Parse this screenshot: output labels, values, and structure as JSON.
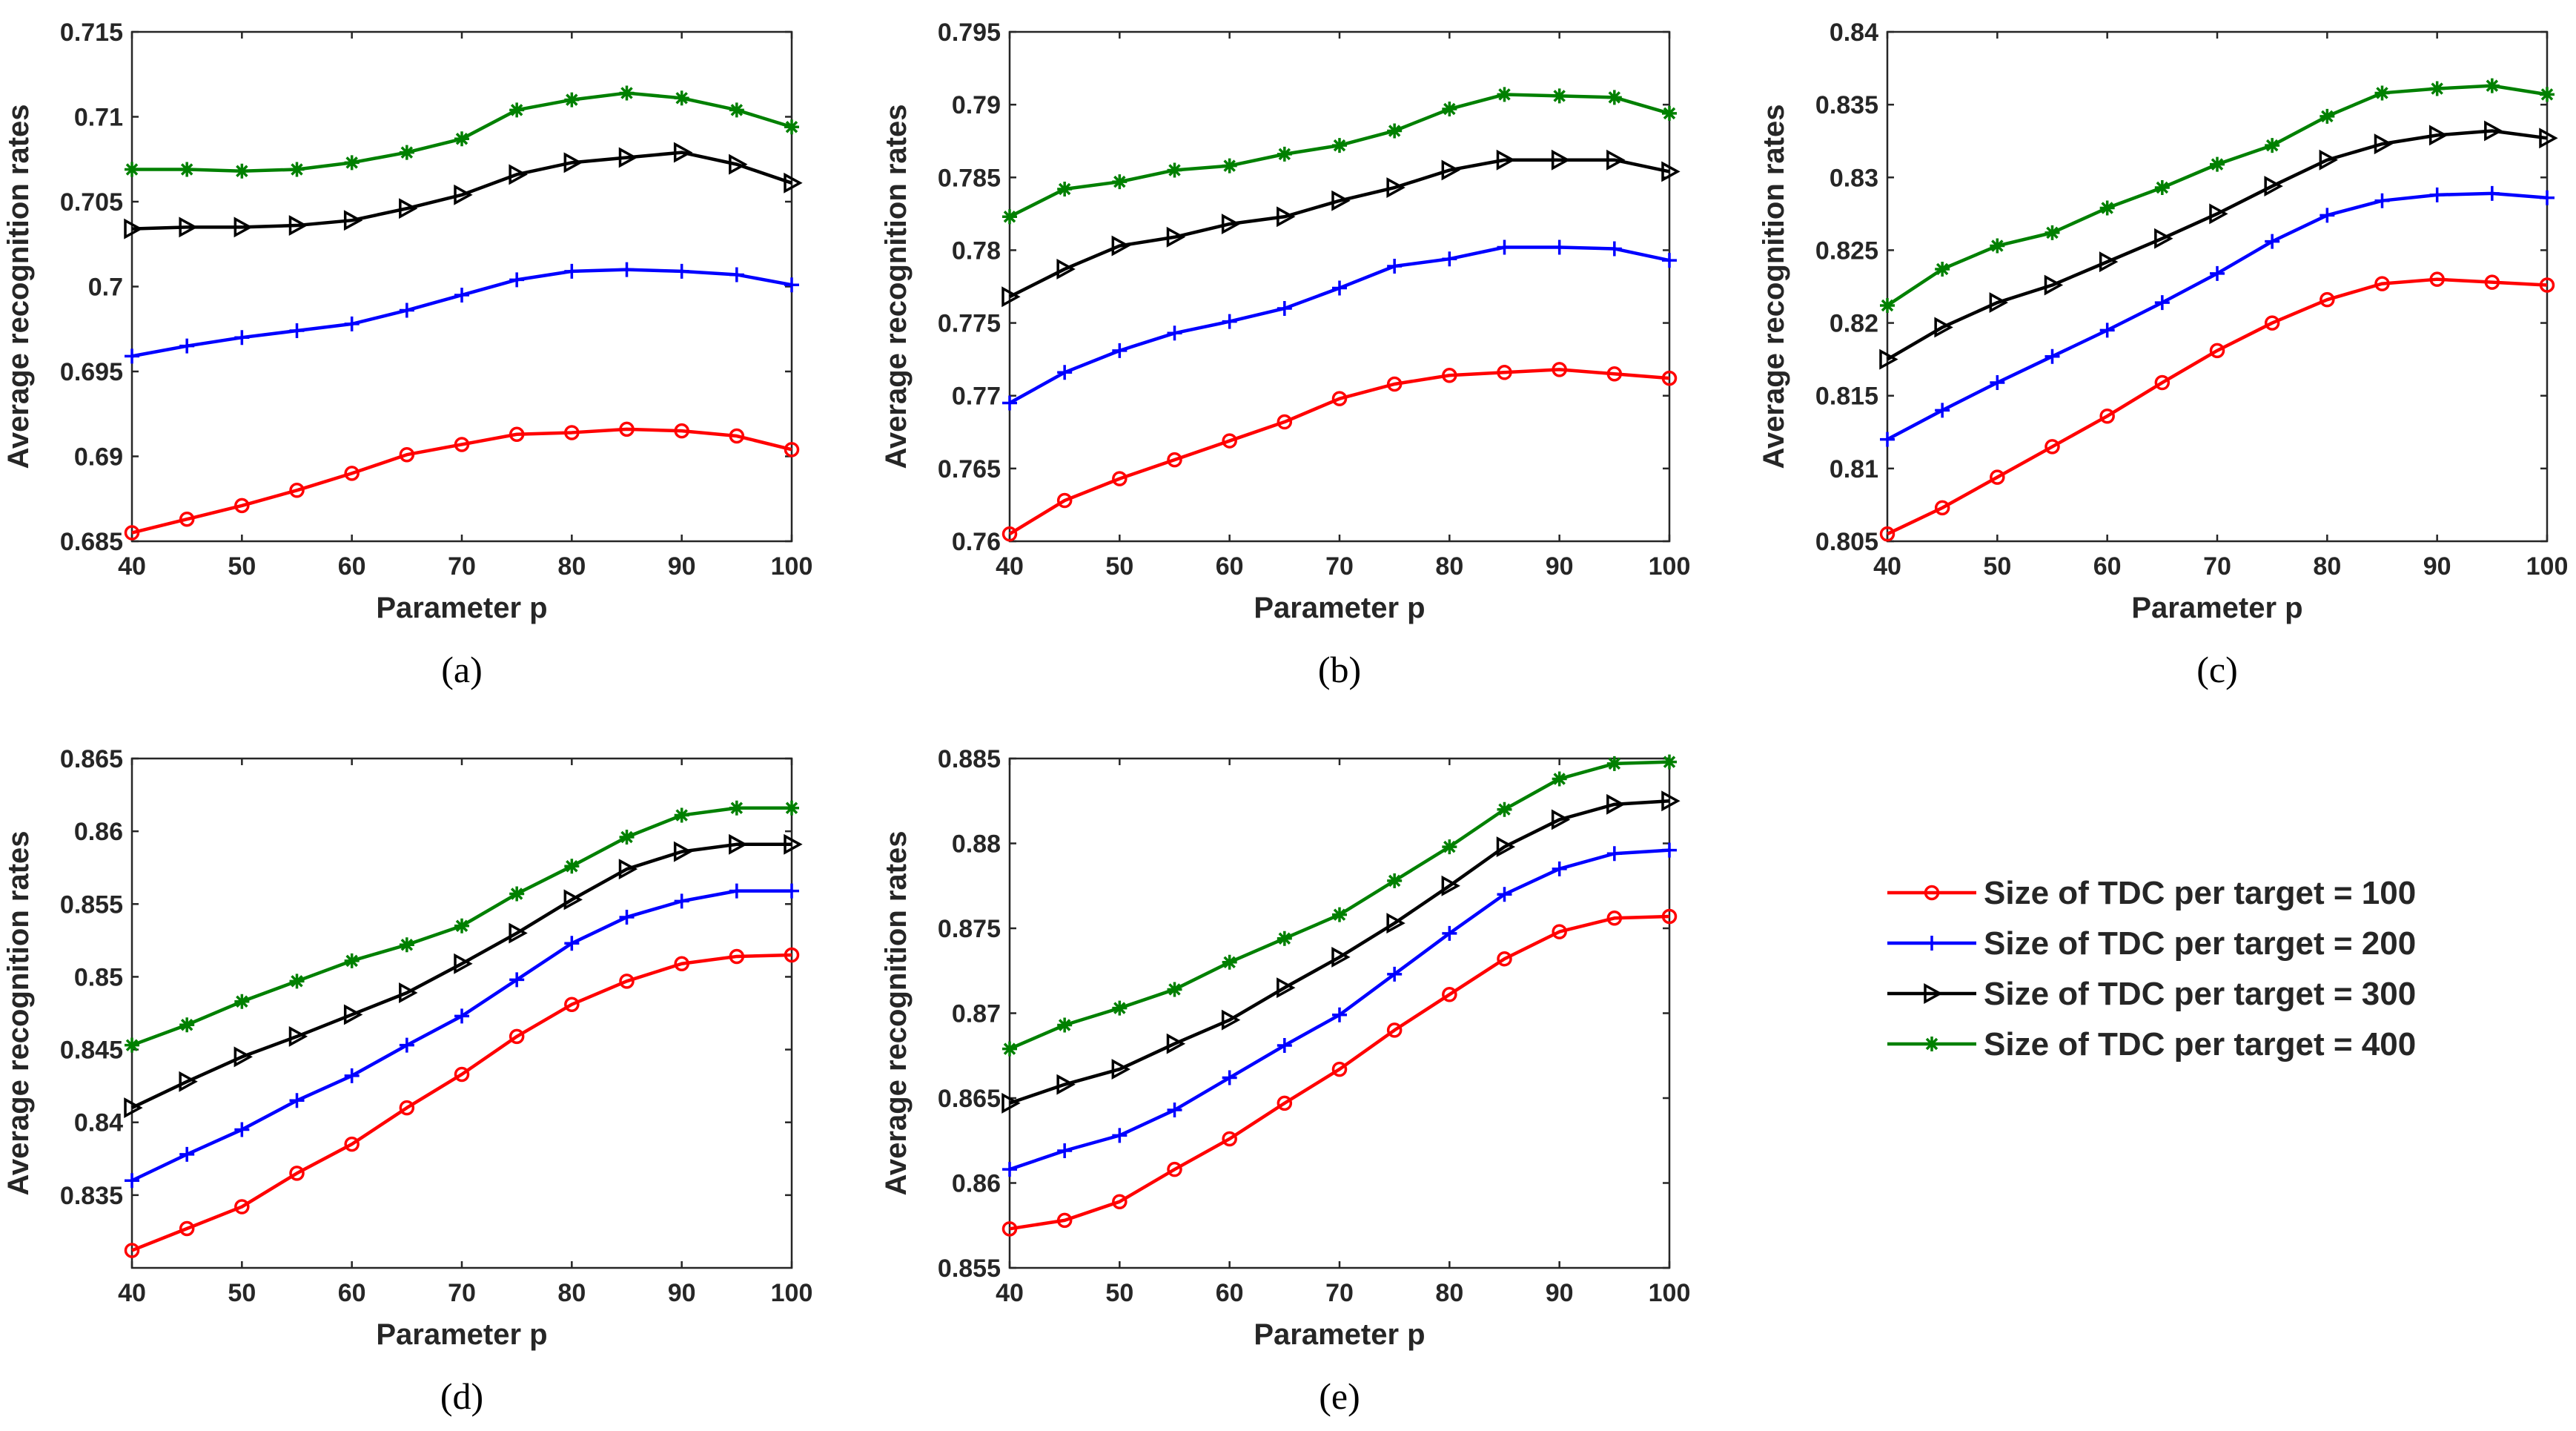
{
  "colors": {
    "s100": "#ff0000",
    "s200": "#0000ff",
    "s300": "#000000",
    "s400": "#008000",
    "axis": "#262626"
  },
  "legend": {
    "entries": [
      {
        "label": "Size of TDC per target = 100",
        "color": "#ff0000",
        "marker": "circle"
      },
      {
        "label": "Size of TDC per target = 200",
        "color": "#0000ff",
        "marker": "plus"
      },
      {
        "label": "Size of TDC per target = 300",
        "color": "#000000",
        "marker": "triangle-right"
      },
      {
        "label": "Size of TDC per target = 400",
        "color": "#008000",
        "marker": "asterisk"
      }
    ]
  },
  "chart_data": [
    {
      "type": "line",
      "caption": "(a)",
      "xlabel": "Parameter p",
      "ylabel": "Average recognition rates",
      "x": [
        40,
        45,
        50,
        55,
        60,
        65,
        70,
        75,
        80,
        85,
        90,
        95,
        100
      ],
      "xlim": [
        40,
        100
      ],
      "xticks": [
        "40",
        "50",
        "60",
        "70",
        "80",
        "90",
        "100"
      ],
      "ylim": [
        0.685,
        0.715
      ],
      "yticks": [
        "0.685",
        "0.69",
        "0.695",
        "0.7",
        "0.705",
        "0.71",
        "0.715"
      ],
      "series": [
        {
          "name": "Size of TDC per target = 100",
          "values": [
            0.6855,
            0.6863,
            0.6871,
            0.688,
            0.689,
            0.6901,
            0.6907,
            0.6913,
            0.6914,
            0.6916,
            0.6915,
            0.6912,
            0.6904
          ]
        },
        {
          "name": "Size of TDC per target = 200",
          "values": [
            0.6959,
            0.6965,
            0.697,
            0.6974,
            0.6978,
            0.6986,
            0.6995,
            0.7004,
            0.7009,
            0.701,
            0.7009,
            0.7007,
            0.7001
          ]
        },
        {
          "name": "Size of TDC per target = 300",
          "values": [
            0.7034,
            0.7035,
            0.7035,
            0.7036,
            0.7039,
            0.7046,
            0.7054,
            0.7066,
            0.7073,
            0.7076,
            0.7079,
            0.7072,
            0.7061
          ]
        },
        {
          "name": "Size of TDC per target = 400",
          "values": [
            0.7069,
            0.7069,
            0.7068,
            0.7069,
            0.7073,
            0.7079,
            0.7087,
            0.7104,
            0.711,
            0.7114,
            0.7111,
            0.7104,
            0.7094
          ]
        }
      ]
    },
    {
      "type": "line",
      "caption": "(b)",
      "xlabel": "Parameter p",
      "ylabel": "Average recognition rates",
      "x": [
        40,
        45,
        50,
        55,
        60,
        65,
        70,
        75,
        80,
        85,
        90,
        95,
        100
      ],
      "xlim": [
        40,
        100
      ],
      "xticks": [
        "40",
        "50",
        "60",
        "70",
        "80",
        "90",
        "100"
      ],
      "ylim": [
        0.76,
        0.795
      ],
      "yticks": [
        "0.76",
        "0.765",
        "0.77",
        "0.775",
        "0.78",
        "0.785",
        "0.79",
        "0.795"
      ],
      "series": [
        {
          "name": "Size of TDC per target = 100",
          "values": [
            0.7605,
            0.7628,
            0.7643,
            0.7656,
            0.7669,
            0.7682,
            0.7698,
            0.7708,
            0.7714,
            0.7716,
            0.7718,
            0.7715,
            0.7712
          ]
        },
        {
          "name": "Size of TDC per target = 200",
          "values": [
            0.7695,
            0.7716,
            0.7731,
            0.7743,
            0.7751,
            0.776,
            0.7774,
            0.7789,
            0.7794,
            0.7802,
            0.7802,
            0.7801,
            0.7793
          ]
        },
        {
          "name": "Size of TDC per target = 300",
          "values": [
            0.7768,
            0.7787,
            0.7803,
            0.7809,
            0.7818,
            0.7823,
            0.7834,
            0.7843,
            0.7855,
            0.7862,
            0.7862,
            0.7862,
            0.7854
          ]
        },
        {
          "name": "Size of TDC per target = 400",
          "values": [
            0.7823,
            0.7842,
            0.7847,
            0.7855,
            0.7858,
            0.7866,
            0.7872,
            0.7882,
            0.7897,
            0.7907,
            0.7906,
            0.7905,
            0.7894
          ]
        }
      ]
    },
    {
      "type": "line",
      "caption": "(c)",
      "xlabel": "Parameter p",
      "ylabel": "Average recognition rates",
      "x": [
        40,
        45,
        50,
        55,
        60,
        65,
        70,
        75,
        80,
        85,
        90,
        95,
        100
      ],
      "xlim": [
        40,
        100
      ],
      "xticks": [
        "40",
        "50",
        "60",
        "70",
        "80",
        "90",
        "100"
      ],
      "ylim": [
        0.805,
        0.84
      ],
      "yticks": [
        "0.805",
        "0.81",
        "0.815",
        "0.82",
        "0.825",
        "0.83",
        "0.835",
        "0.84"
      ],
      "series": [
        {
          "name": "Size of TDC per target = 100",
          "values": [
            0.8055,
            0.8073,
            0.8094,
            0.8115,
            0.8136,
            0.8159,
            0.8181,
            0.82,
            0.8216,
            0.8227,
            0.823,
            0.8228,
            0.8226
          ]
        },
        {
          "name": "Size of TDC per target = 200",
          "values": [
            0.812,
            0.814,
            0.8159,
            0.8177,
            0.8195,
            0.8214,
            0.8234,
            0.8256,
            0.8274,
            0.8284,
            0.8288,
            0.8289,
            0.8286
          ]
        },
        {
          "name": "Size of TDC per target = 300",
          "values": [
            0.8175,
            0.8197,
            0.8214,
            0.8226,
            0.8242,
            0.8258,
            0.8275,
            0.8294,
            0.8312,
            0.8323,
            0.8329,
            0.8332,
            0.8327
          ]
        },
        {
          "name": "Size of TDC per target = 400",
          "values": [
            0.8212,
            0.8237,
            0.8253,
            0.8262,
            0.8279,
            0.8293,
            0.8309,
            0.8322,
            0.8342,
            0.8358,
            0.8361,
            0.8363,
            0.8357
          ]
        }
      ]
    },
    {
      "type": "line",
      "caption": "(d)",
      "xlabel": "Parameter p",
      "ylabel": "Average recognition rates",
      "x": [
        40,
        45,
        50,
        55,
        60,
        65,
        70,
        75,
        80,
        85,
        90,
        95,
        100
      ],
      "xlim": [
        40,
        100
      ],
      "xticks": [
        "40",
        "50",
        "60",
        "70",
        "80",
        "90",
        "100"
      ],
      "ylim": [
        0.83,
        0.865
      ],
      "yticks": [
        "0.835",
        "0.84",
        "0.845",
        "0.85",
        "0.855",
        "0.86",
        "0.865"
      ],
      "series": [
        {
          "name": "Size of TDC per target = 100",
          "values": [
            0.8312,
            0.8327,
            0.8342,
            0.8365,
            0.8385,
            0.841,
            0.8433,
            0.8459,
            0.8481,
            0.8497,
            0.8509,
            0.8514,
            0.8515
          ]
        },
        {
          "name": "Size of TDC per target = 200",
          "values": [
            0.836,
            0.8378,
            0.8395,
            0.8415,
            0.8432,
            0.8453,
            0.8473,
            0.8498,
            0.8523,
            0.8541,
            0.8552,
            0.8559,
            0.8559
          ]
        },
        {
          "name": "Size of TDC per target = 300",
          "values": [
            0.841,
            0.8428,
            0.8445,
            0.8459,
            0.8474,
            0.8489,
            0.8509,
            0.853,
            0.8553,
            0.8574,
            0.8586,
            0.8591,
            0.8591
          ]
        },
        {
          "name": "Size of TDC per target = 400",
          "values": [
            0.8453,
            0.8467,
            0.8483,
            0.8497,
            0.8511,
            0.8522,
            0.8535,
            0.8557,
            0.8576,
            0.8596,
            0.8611,
            0.8616,
            0.8616
          ]
        }
      ]
    },
    {
      "type": "line",
      "caption": "(e)",
      "xlabel": "Parameter p",
      "ylabel": "Average recognition rates",
      "x": [
        40,
        45,
        50,
        55,
        60,
        65,
        70,
        75,
        80,
        85,
        90,
        95,
        100
      ],
      "xlim": [
        40,
        100
      ],
      "xticks": [
        "40",
        "50",
        "60",
        "70",
        "80",
        "90",
        "100"
      ],
      "ylim": [
        0.855,
        0.885
      ],
      "yticks": [
        "0.855",
        "0.86",
        "0.865",
        "0.87",
        "0.875",
        "0.88",
        "0.885"
      ],
      "series": [
        {
          "name": "Size of TDC per target = 100",
          "values": [
            0.8573,
            0.8578,
            0.8589,
            0.8608,
            0.8626,
            0.8647,
            0.8667,
            0.869,
            0.8711,
            0.8732,
            0.8748,
            0.8756,
            0.8757
          ]
        },
        {
          "name": "Size of TDC per target = 200",
          "values": [
            0.8608,
            0.8619,
            0.8628,
            0.8643,
            0.8662,
            0.8681,
            0.8699,
            0.8723,
            0.8747,
            0.877,
            0.8785,
            0.8794,
            0.8796
          ]
        },
        {
          "name": "Size of TDC per target = 300",
          "values": [
            0.8647,
            0.8658,
            0.8667,
            0.8682,
            0.8696,
            0.8715,
            0.8733,
            0.8753,
            0.8775,
            0.8798,
            0.8814,
            0.8823,
            0.8825
          ]
        },
        {
          "name": "Size of TDC per target = 400",
          "values": [
            0.8679,
            0.8693,
            0.8703,
            0.8714,
            0.873,
            0.8744,
            0.8758,
            0.8778,
            0.8798,
            0.882,
            0.8838,
            0.8847,
            0.8848
          ]
        }
      ]
    }
  ]
}
